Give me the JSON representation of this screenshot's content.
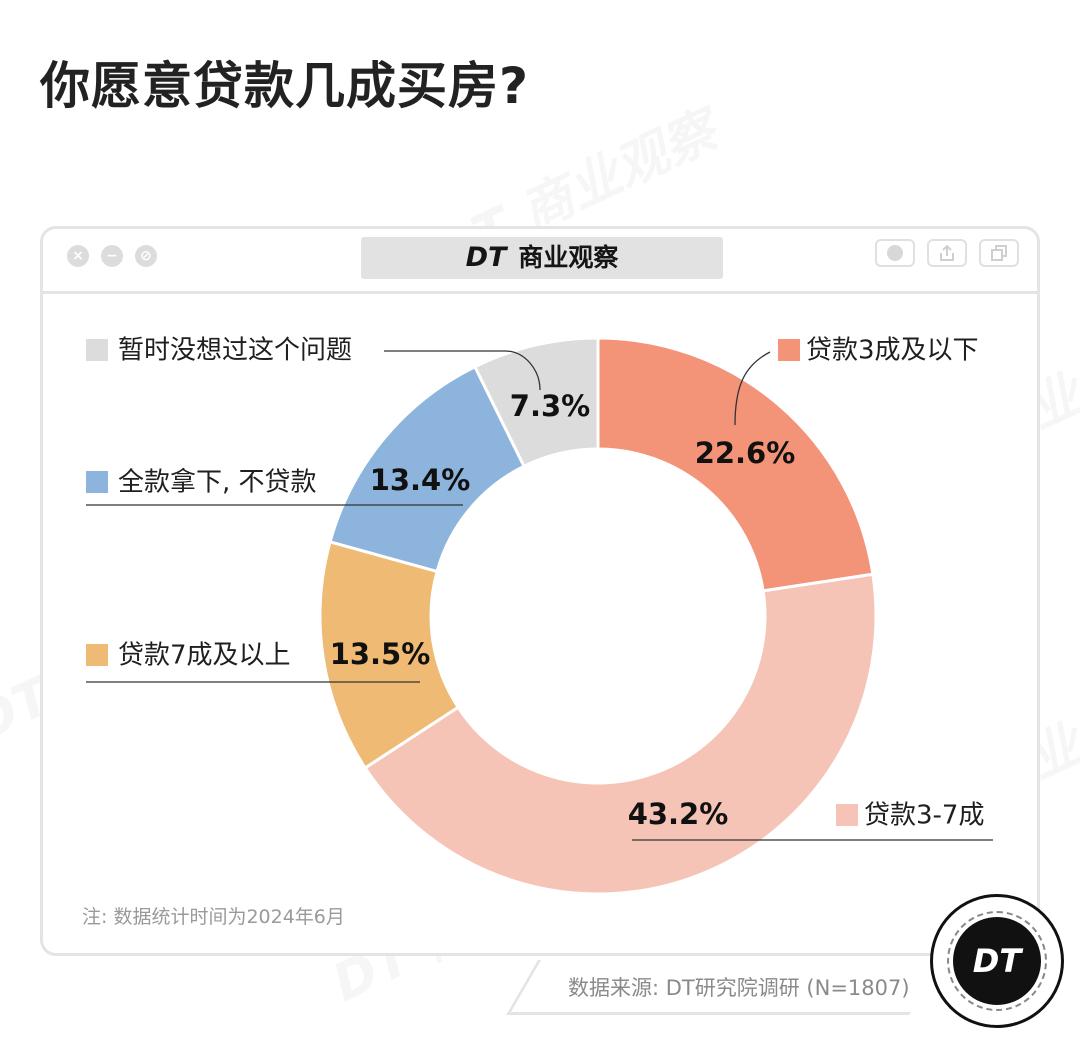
{
  "title": "你愿意贷款几成买房?",
  "brand": {
    "mark": "DT",
    "name": "商业观察"
  },
  "badge": "DT",
  "note": "注: 数据统计时间为2024年6月",
  "source": "数据来源: DT研究院调研 (N=1807)",
  "chart_data": {
    "type": "pie",
    "donut": true,
    "categories": [
      "贷款3成及以下",
      "贷款3-7成",
      "贷款7成及以上",
      "全款拿下, 不贷款",
      "暂时没想过这个问题"
    ],
    "values": [
      22.6,
      43.2,
      13.5,
      13.4,
      7.3
    ],
    "value_labels": [
      "22.6%",
      "43.2%",
      "13.5%",
      "13.4%",
      "7.3%"
    ],
    "colors": [
      "#F39378",
      "#F5C4B6",
      "#EEBA74",
      "#8DB4DD",
      "#DCDCDC"
    ],
    "legend_placement": "around"
  }
}
